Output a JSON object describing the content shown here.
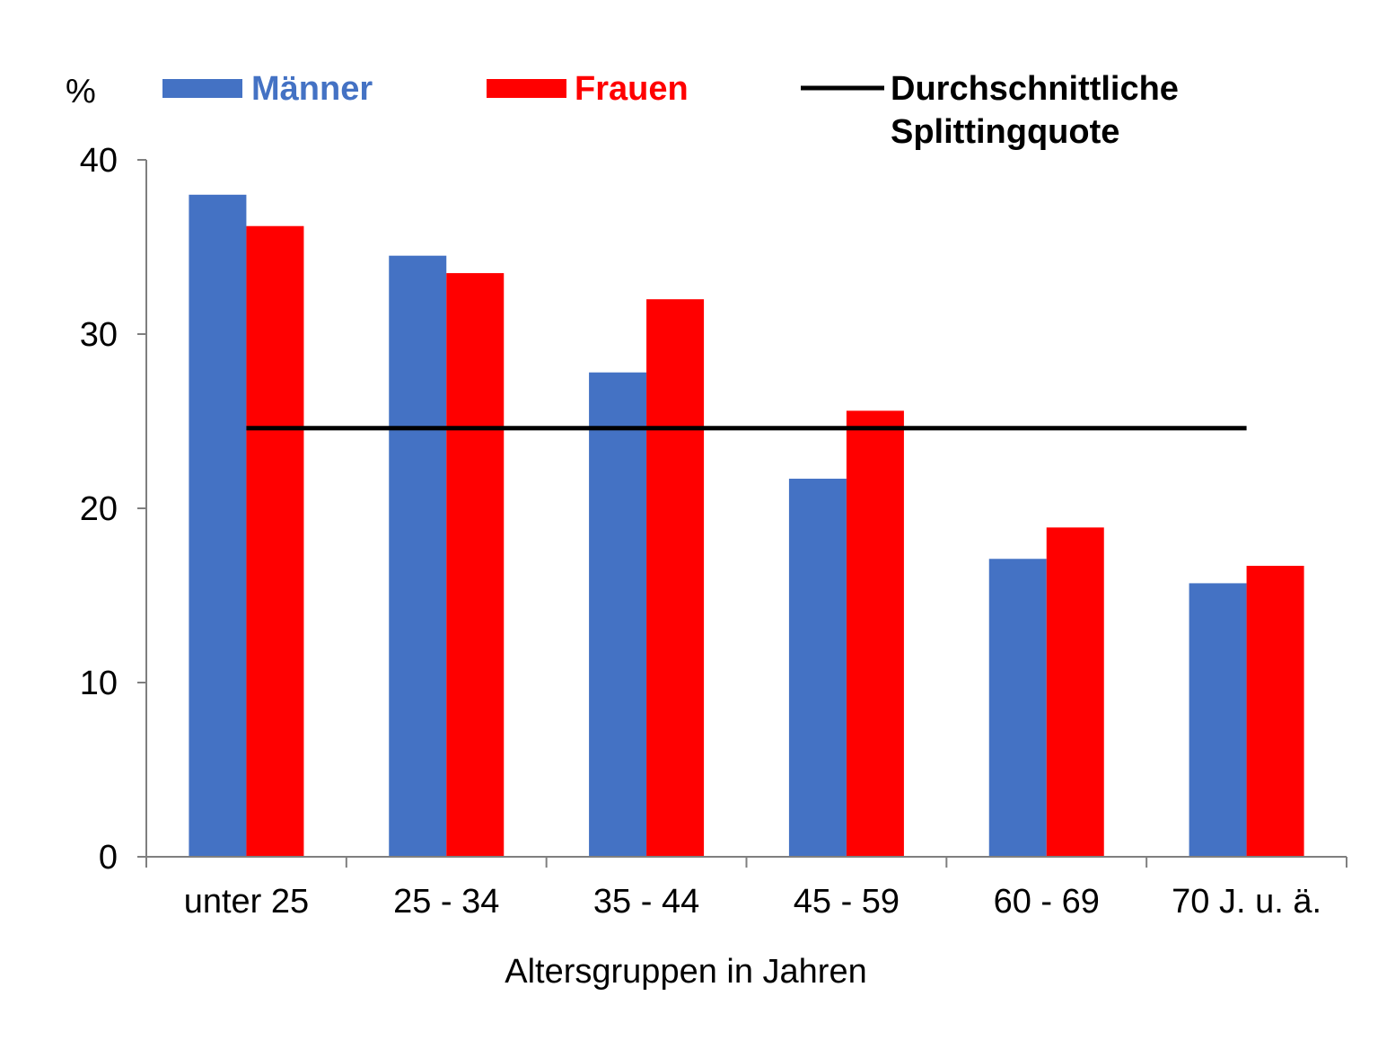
{
  "chart_data": {
    "type": "bar",
    "ylabel": "%",
    "xlabel": "Altersgruppen in Jahren",
    "ylim": [
      0,
      40
    ],
    "yticks": [
      0,
      10,
      20,
      30,
      40
    ],
    "categories": [
      "unter 25",
      "25 - 34",
      "35 - 44",
      "45 - 59",
      "60 - 69",
      "70 J. u. ä."
    ],
    "series": [
      {
        "name": "Männer",
        "color": "#4472C4",
        "values": [
          38.0,
          34.5,
          27.8,
          21.7,
          17.1,
          15.7
        ]
      },
      {
        "name": "Frauen",
        "color": "#FF0000",
        "values": [
          36.2,
          33.5,
          32.0,
          25.6,
          18.9,
          16.7
        ]
      }
    ],
    "reference_line": {
      "name_lines": [
        "Durchschnittliche",
        "Splittingquote"
      ],
      "value": 24.6,
      "color": "#000000"
    },
    "legend_position": "top",
    "grid": false
  }
}
